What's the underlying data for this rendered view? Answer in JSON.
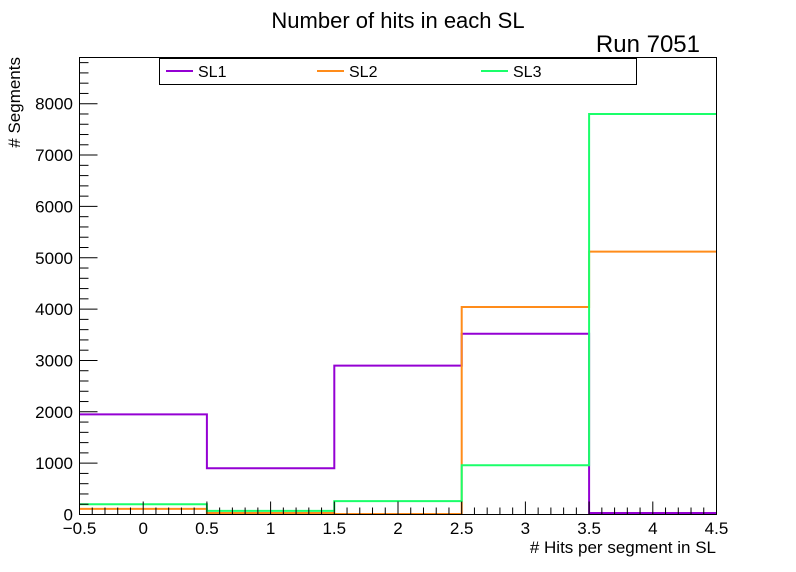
{
  "chart_data": {
    "type": "step-histogram",
    "title": "Number of hits in each SL",
    "annotation": "Run 7051",
    "xlabel": "# Hits per segment in SL",
    "ylabel": "# Segments",
    "xlim": [
      -0.5,
      4.5
    ],
    "ylim": [
      0,
      8900
    ],
    "bin_edges": [
      -0.5,
      0.5,
      1.5,
      2.5,
      3.5,
      4.5
    ],
    "x_ticks": [
      -0.5,
      0,
      0.5,
      1,
      1.5,
      2,
      2.5,
      3,
      3.5,
      4,
      4.5
    ],
    "x_tick_labels": [
      "−0.5",
      "0",
      "0.5",
      "1",
      "1.5",
      "2",
      "2.5",
      "3",
      "3.5",
      "4",
      "4.5"
    ],
    "y_ticks": [
      0,
      1000,
      2000,
      3000,
      4000,
      5000,
      6000,
      7000,
      8000
    ],
    "y_tick_labels": [
      "0",
      "1000",
      "2000",
      "3000",
      "4000",
      "5000",
      "6000",
      "7000",
      "8000"
    ],
    "grid": false,
    "legend_position": "top",
    "series": [
      {
        "name": "SL1",
        "color": "#9400d3",
        "values": [
          1950,
          900,
          2900,
          3520,
          30
        ]
      },
      {
        "name": "SL2",
        "color": "#ff8c1a",
        "values": [
          110,
          30,
          10,
          4040,
          5120
        ]
      },
      {
        "name": "SL3",
        "color": "#1aff6a",
        "values": [
          200,
          70,
          260,
          960,
          7800
        ]
      }
    ]
  }
}
